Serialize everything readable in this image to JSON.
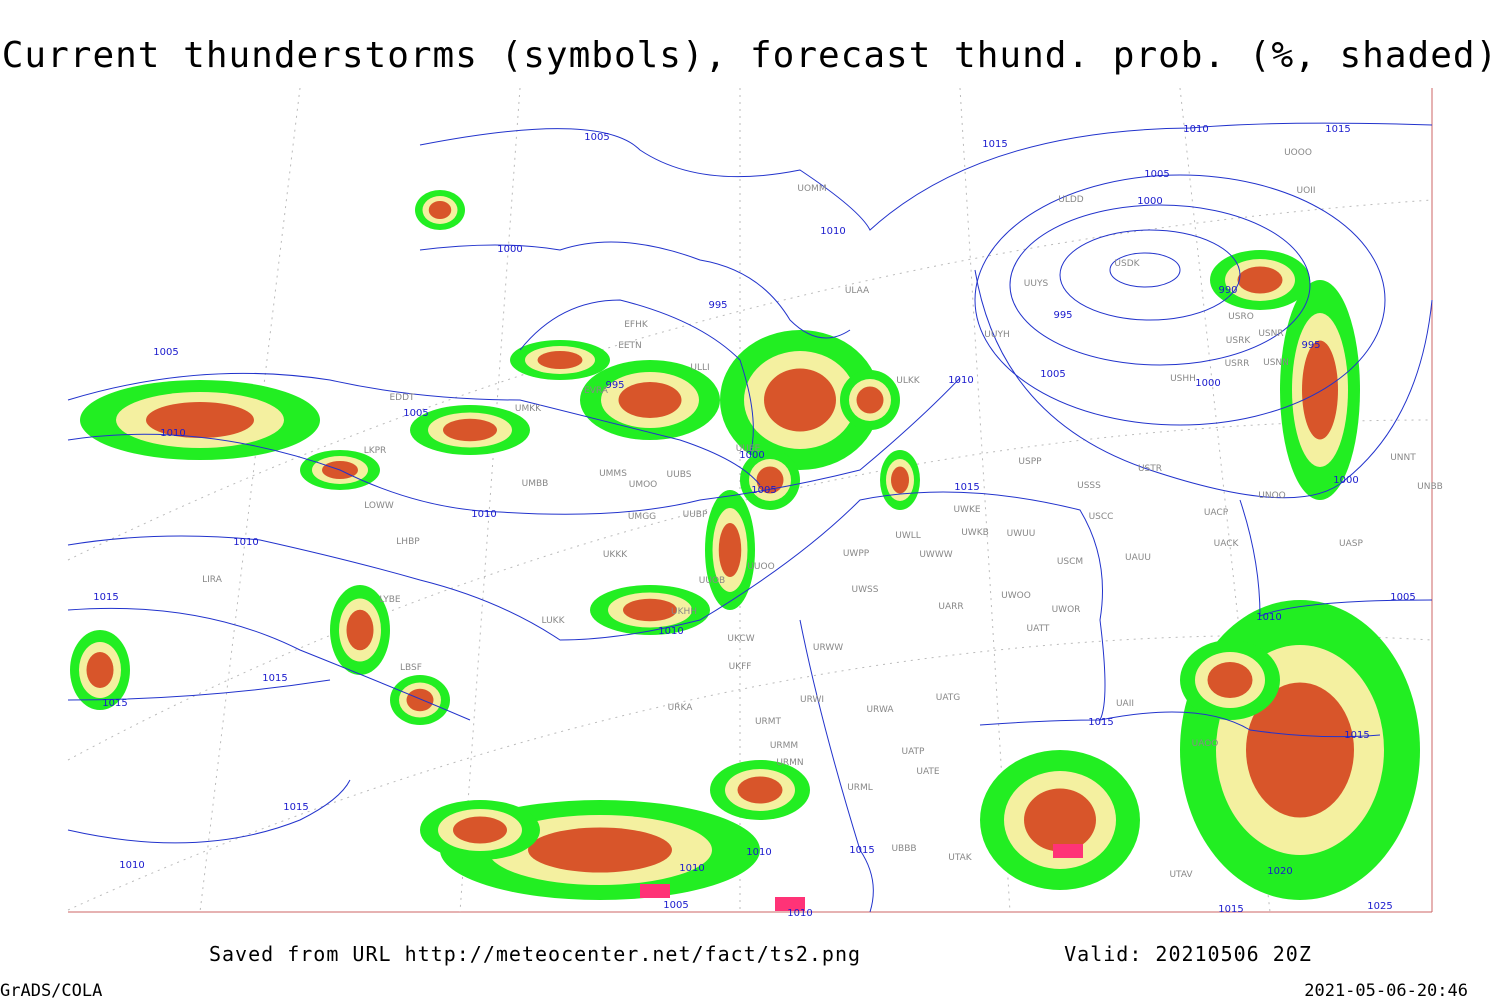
{
  "header": {
    "title": "Current thunderstorms (symbols), forecast thund. prob. (%, shaded)"
  },
  "isobar_labels": [
    1005,
    1015,
    1010,
    1015,
    1005,
    1000,
    1010,
    1000,
    995,
    990,
    995,
    995,
    1005,
    995,
    1010,
    1005,
    1000,
    1005,
    1010,
    1000,
    1005,
    1015,
    1000,
    1010,
    1010,
    1015,
    1010,
    1010,
    1005,
    1015,
    1015,
    1015,
    1015,
    1015,
    1010,
    1015,
    1010,
    1010,
    1005,
    1010,
    1020,
    1015,
    1025
  ],
  "stations": [
    "UOMM",
    "ULDD",
    "ULAA",
    "UUYS",
    "USDK",
    "USRO",
    "USRK",
    "USNR",
    "USRR",
    "USNN",
    "UUYH",
    "ULKK",
    "USHH",
    "UOOO",
    "UOII",
    "EFHK",
    "EETN",
    "ULLI",
    "EVRA",
    "UMKK",
    "EDDT",
    "UMMS",
    "UMOO",
    "UUBS",
    "UMBB",
    "LKPR",
    "UUEE",
    "USPP",
    "USSS",
    "USTR",
    "UNOO",
    "UNNT",
    "UNBB",
    "UWKE",
    "UWKB",
    "UWUU",
    "USCC",
    "UACP",
    "UACK",
    "UASP",
    "UWWW",
    "UWPP",
    "UWLL",
    "UMGG",
    "UUBP",
    "UKKK",
    "UUOO",
    "USCM",
    "UAUU",
    "LHBP",
    "UUOB",
    "UWSS",
    "LUKK",
    "UKHH",
    "UARR",
    "UWOO",
    "UWOR",
    "UATT",
    "UKCW",
    "URWW",
    "UKFF",
    "LBSF",
    "URWA",
    "UATG",
    "URMT",
    "URWI",
    "URMM",
    "URMN",
    "UATE",
    "UATP",
    "URML",
    "UBBB",
    "UTAK",
    "UTAV",
    "UAII",
    "UAOO",
    "URKA",
    "LYBE",
    "LIRA",
    "LOWW"
  ],
  "footer": {
    "source": "Saved from URL http://meteocenter.net/fact/ts2.png",
    "valid": "Valid: 20210506 20Z",
    "software": "GrADS/COLA",
    "timestamp": "2021-05-06-20:46"
  }
}
